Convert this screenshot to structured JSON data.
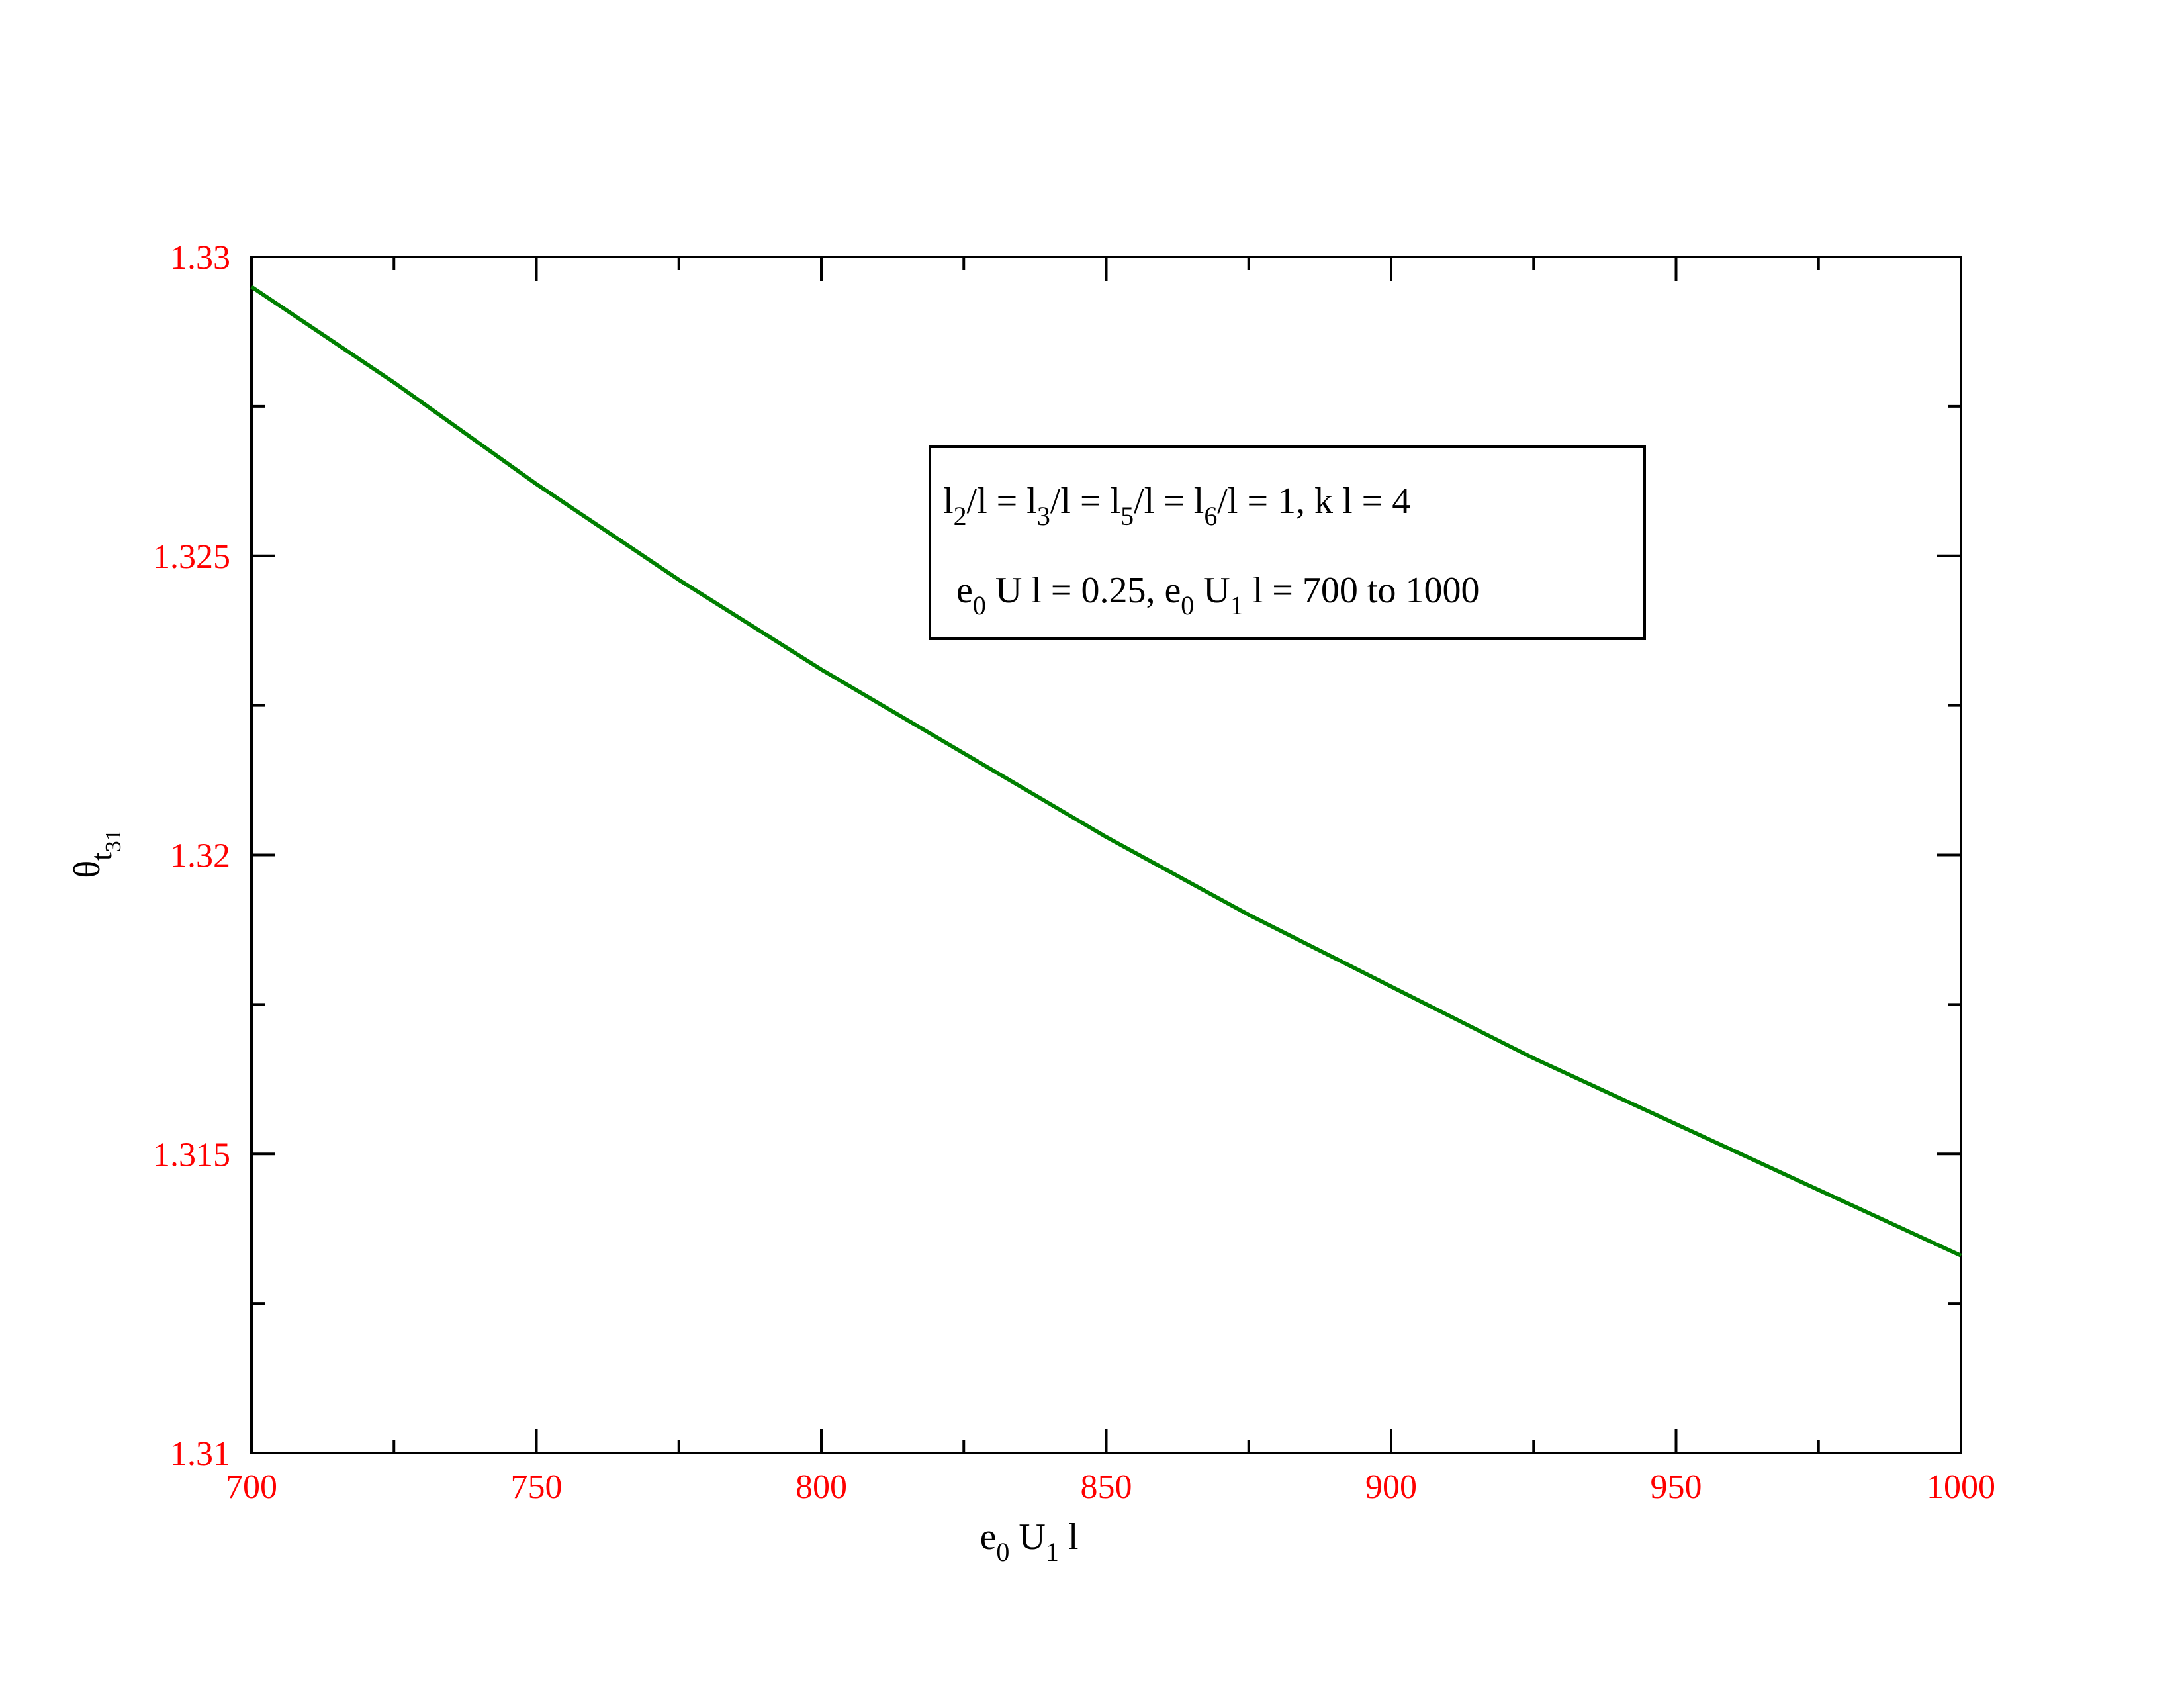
{
  "chart_data": {
    "type": "line",
    "title": "",
    "xlabel": {
      "base1": "e",
      "sub1": "0",
      "base2": " U",
      "sub2": "1",
      "base3": " l"
    },
    "ylabel": {
      "base": "θ",
      "sub1": "t",
      "sub2": "31"
    },
    "xlim": [
      700,
      1000
    ],
    "ylim": [
      1.31,
      1.33
    ],
    "x_ticks": [
      "700",
      "750",
      "800",
      "850",
      "900",
      "950",
      "1000"
    ],
    "y_ticks": [
      "1.31",
      "1.315",
      "1.32",
      "1.325",
      "1.33"
    ],
    "grid": false,
    "series": [
      {
        "color": "#008000",
        "x": [
          700,
          725,
          750,
          775,
          800,
          825,
          850,
          875,
          900,
          925,
          950,
          975,
          1000
        ],
        "y": [
          1.3295,
          1.3279,
          1.3262,
          1.3246,
          1.3231,
          1.3217,
          1.3203,
          1.319,
          1.3178,
          1.3166,
          1.3155,
          1.3144,
          1.3133
        ]
      }
    ],
    "legend": {
      "placement": "top-right",
      "line1": [
        {
          "t": "l"
        },
        {
          "s": "2"
        },
        {
          "t": "/l = l"
        },
        {
          "s": "3"
        },
        {
          "t": "/l = l"
        },
        {
          "s": "5"
        },
        {
          "t": "/l = l"
        },
        {
          "s": "6"
        },
        {
          "t": "/l = 1, k l = 4"
        }
      ],
      "line2": [
        {
          "t": "e"
        },
        {
          "s": "0"
        },
        {
          "t": " U l = 0.25, e"
        },
        {
          "s": "0"
        },
        {
          "t": " U"
        },
        {
          "s": "1"
        },
        {
          "t": " l = 700 to 1000"
        }
      ]
    },
    "colors": {
      "tick_label": "#ff0000",
      "axis": "#000000"
    }
  }
}
